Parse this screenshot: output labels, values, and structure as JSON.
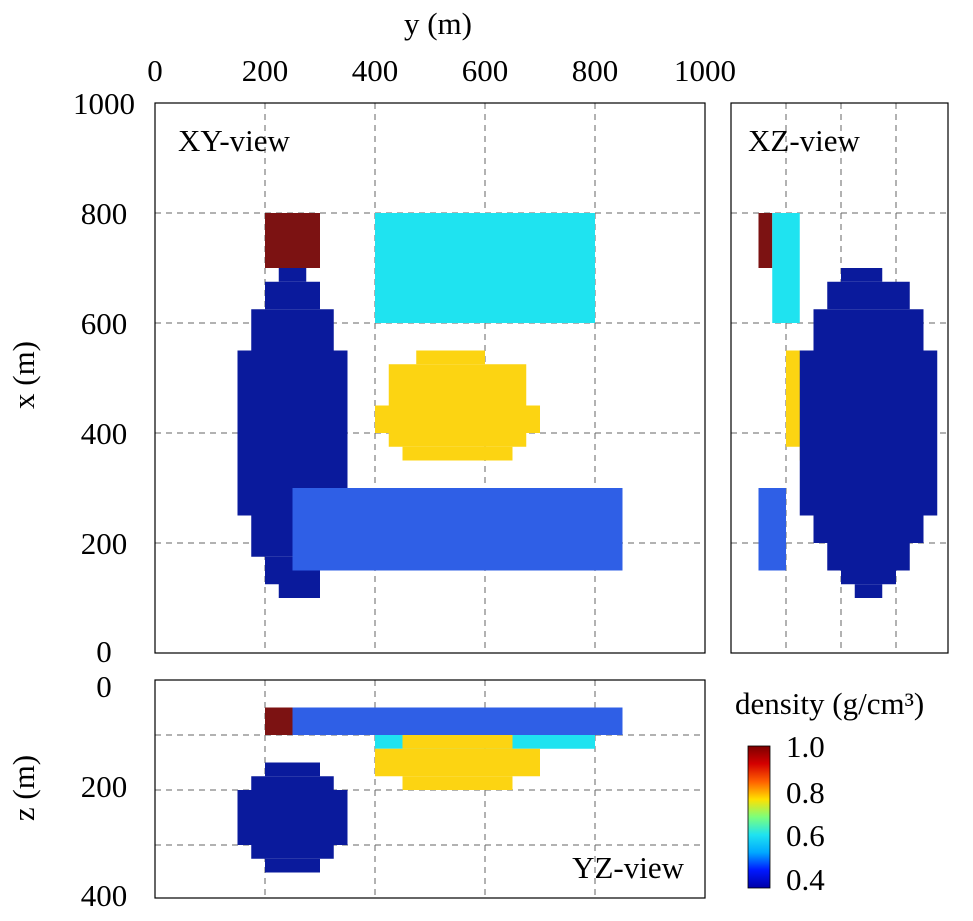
{
  "chart_data": {
    "type": "heatmap",
    "axes": {
      "y_label": "y (m)",
      "x_label": "x (m)",
      "z_label": "z (m)",
      "y_ticks": [
        "0",
        "200",
        "400",
        "600",
        "800",
        "1000"
      ],
      "x_ticks": [
        "1000",
        "800",
        "600",
        "400",
        "200",
        "0"
      ],
      "z_ticks": [
        "0",
        "200",
        "400"
      ],
      "y_range": [
        0,
        1000
      ],
      "x_range": [
        0,
        1000
      ],
      "z_range": [
        0,
        400
      ],
      "grid": "dashed"
    },
    "panels": [
      {
        "name": "XY-view",
        "horizontal": "y",
        "vertical": "x",
        "shapes": [
          {
            "kind": "rect",
            "color": "#0a1a9c",
            "y": [
              225,
              300
            ],
            "x": [
              100,
              150
            ]
          },
          {
            "kind": "rect",
            "color": "#0a1a9c",
            "y": [
              200,
              300
            ],
            "x": [
              125,
              175
            ]
          },
          {
            "kind": "rect",
            "color": "#0a1a9c",
            "y": [
              175,
              325
            ],
            "x": [
              175,
              250
            ]
          },
          {
            "kind": "rect",
            "color": "#0a1a9c",
            "y": [
              150,
              350
            ],
            "x": [
              250,
              550
            ]
          },
          {
            "kind": "rect",
            "color": "#0a1a9c",
            "y": [
              175,
              325
            ],
            "x": [
              550,
              625
            ]
          },
          {
            "kind": "rect",
            "color": "#0a1a9c",
            "y": [
              200,
              300
            ],
            "x": [
              625,
              675
            ]
          },
          {
            "kind": "rect",
            "color": "#0a1a9c",
            "y": [
              225,
              275
            ],
            "x": [
              675,
              700
            ]
          },
          {
            "kind": "rect",
            "color": "#7c1212",
            "y": [
              200,
              300
            ],
            "x": [
              700,
              800
            ]
          },
          {
            "kind": "rect",
            "color": "#1fe3f0",
            "y": [
              400,
              800
            ],
            "x": [
              600,
              800
            ]
          },
          {
            "kind": "rect",
            "color": "#fcd412",
            "y": [
              450,
              650
            ],
            "x": [
              350,
              375
            ]
          },
          {
            "kind": "rect",
            "color": "#fcd412",
            "y": [
              425,
              675
            ],
            "x": [
              375,
              400
            ]
          },
          {
            "kind": "rect",
            "color": "#fcd412",
            "y": [
              400,
              700
            ],
            "x": [
              400,
              450
            ]
          },
          {
            "kind": "rect",
            "color": "#fcd412",
            "y": [
              425,
              675
            ],
            "x": [
              450,
              525
            ]
          },
          {
            "kind": "rect",
            "color": "#fcd412",
            "y": [
              475,
              600
            ],
            "x": [
              525,
              550
            ]
          },
          {
            "kind": "rect",
            "color": "#2f5fe6",
            "y": [
              250,
              850
            ],
            "x": [
              150,
              300
            ]
          }
        ]
      },
      {
        "name": "XZ-view",
        "horizontal": "z",
        "vertical": "x",
        "shapes": [
          {
            "kind": "rect",
            "color": "#7c1212",
            "z": [
              50,
              75
            ],
            "x": [
              700,
              800
            ]
          },
          {
            "kind": "rect",
            "color": "#1fe3f0",
            "z": [
              75,
              125
            ],
            "x": [
              600,
              800
            ]
          },
          {
            "kind": "rect",
            "color": "#2f5fe6",
            "z": [
              50,
              100
            ],
            "x": [
              150,
              300
            ]
          },
          {
            "kind": "rect",
            "color": "#fcd412",
            "z": [
              125,
              175
            ],
            "x": [
              350,
              375
            ]
          },
          {
            "kind": "rect",
            "color": "#fcd412",
            "z": [
              100,
              200
            ],
            "x": [
              375,
              550
            ]
          },
          {
            "kind": "rect",
            "color": "#0a1a9c",
            "z": [
              225,
              275
            ],
            "x": [
              100,
              125
            ]
          },
          {
            "kind": "rect",
            "color": "#0a1a9c",
            "z": [
              200,
              300
            ],
            "x": [
              125,
              150
            ]
          },
          {
            "kind": "rect",
            "color": "#0a1a9c",
            "z": [
              175,
              325
            ],
            "x": [
              150,
              200
            ]
          },
          {
            "kind": "rect",
            "color": "#0a1a9c",
            "z": [
              150,
              350
            ],
            "x": [
              200,
              250
            ]
          },
          {
            "kind": "rect",
            "color": "#0a1a9c",
            "z": [
              125,
              375
            ],
            "x": [
              250,
              550
            ]
          },
          {
            "kind": "rect",
            "color": "#0a1a9c",
            "z": [
              150,
              350
            ],
            "x": [
              550,
              625
            ]
          },
          {
            "kind": "rect",
            "color": "#0a1a9c",
            "z": [
              175,
              325
            ],
            "x": [
              625,
              675
            ]
          },
          {
            "kind": "rect",
            "color": "#0a1a9c",
            "z": [
              200,
              275
            ],
            "x": [
              675,
              700
            ]
          }
        ]
      },
      {
        "name": "YZ-view",
        "horizontal": "y",
        "vertical": "z",
        "shapes": [
          {
            "kind": "rect",
            "color": "#1fe3f0",
            "y": [
              400,
              800
            ],
            "z": [
              100,
              125
            ]
          },
          {
            "kind": "rect",
            "color": "#fcd412",
            "y": [
              450,
              650
            ],
            "z": [
              100,
              125
            ]
          },
          {
            "kind": "rect",
            "color": "#fcd412",
            "y": [
              400,
              700
            ],
            "z": [
              125,
              175
            ]
          },
          {
            "kind": "rect",
            "color": "#fcd412",
            "y": [
              450,
              650
            ],
            "z": [
              175,
              200
            ]
          },
          {
            "kind": "rect",
            "color": "#7c1212",
            "y": [
              200,
              250
            ],
            "z": [
              50,
              100
            ]
          },
          {
            "kind": "rect",
            "color": "#2f5fe6",
            "y": [
              250,
              850
            ],
            "z": [
              50,
              100
            ]
          },
          {
            "kind": "rect",
            "color": "#0a1a9c",
            "y": [
              200,
              300
            ],
            "z": [
              150,
              175
            ]
          },
          {
            "kind": "rect",
            "color": "#0a1a9c",
            "y": [
              175,
              325
            ],
            "z": [
              175,
              200
            ]
          },
          {
            "kind": "rect",
            "color": "#0a1a9c",
            "y": [
              150,
              350
            ],
            "z": [
              200,
              300
            ]
          },
          {
            "kind": "rect",
            "color": "#0a1a9c",
            "y": [
              175,
              325
            ],
            "z": [
              300,
              325
            ]
          },
          {
            "kind": "rect",
            "color": "#0a1a9c",
            "y": [
              200,
              300
            ],
            "z": [
              325,
              350
            ]
          }
        ]
      }
    ],
    "colorbar": {
      "title": "density (g/cm³)",
      "ticks": [
        "1.0",
        "0.8",
        "0.6",
        "0.4"
      ],
      "range": [
        0.4,
        1.0
      ],
      "colors": [
        "#0000a8",
        "#0018ff",
        "#00a8ff",
        "#1fe3f0",
        "#7cff7c",
        "#ffe000",
        "#ff6000",
        "#d40000",
        "#7c0000"
      ]
    }
  }
}
